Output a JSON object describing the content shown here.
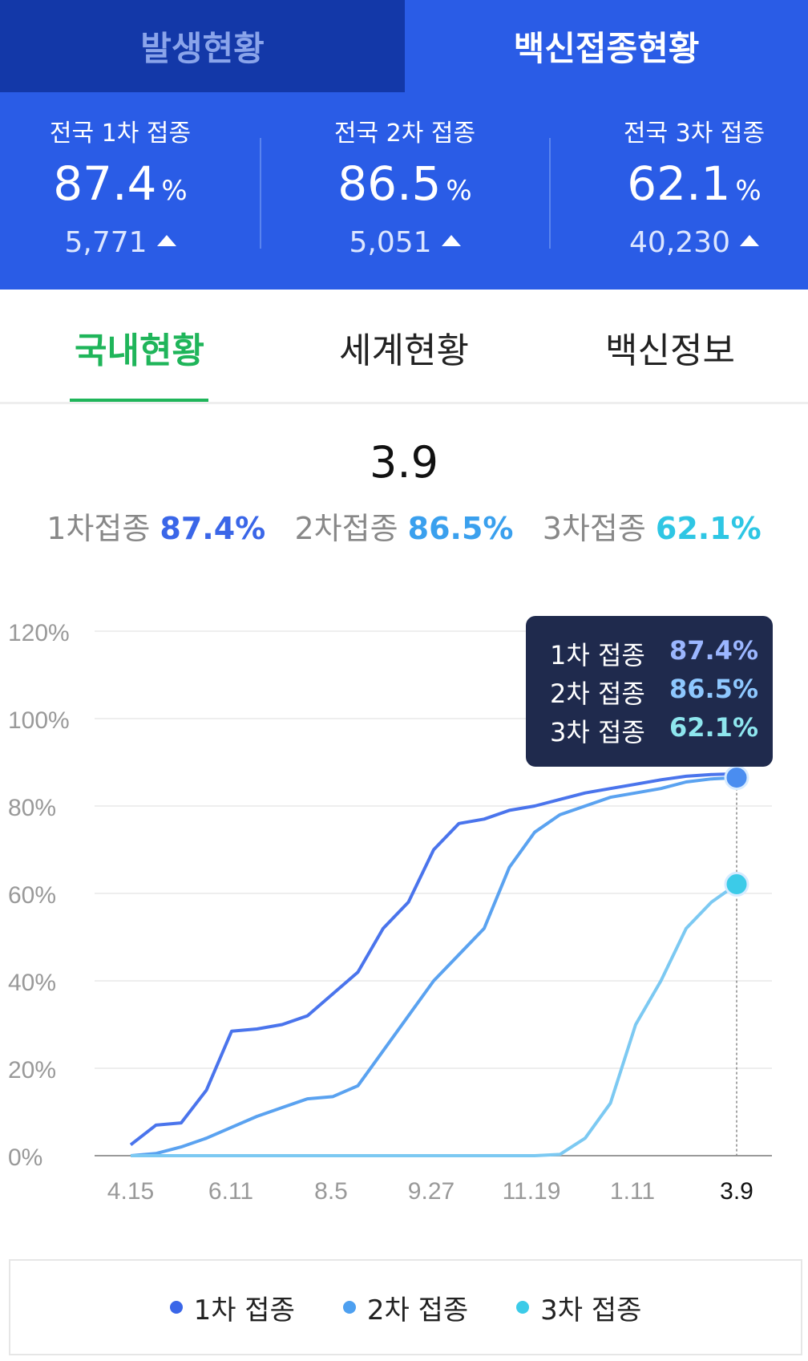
{
  "header": {
    "tabs": [
      {
        "label": "발생현황",
        "active": false
      },
      {
        "label": "백신접종현황",
        "active": true
      }
    ]
  },
  "stats": [
    {
      "label": "전국 1차 접종",
      "value": "87.4",
      "unit": "%",
      "change": "5,771"
    },
    {
      "label": "전국 2차 접종",
      "value": "86.5",
      "unit": "%",
      "change": "5,051"
    },
    {
      "label": "전국 3차 접종",
      "value": "62.1",
      "unit": "%",
      "change": "40,230"
    }
  ],
  "subtabs": [
    {
      "label": "국내현황",
      "active": true
    },
    {
      "label": "세계현황",
      "active": false
    },
    {
      "label": "백신정보",
      "active": false
    }
  ],
  "summary": {
    "date": "3.9",
    "items": [
      {
        "label": "1차접종",
        "value": "87.4%"
      },
      {
        "label": "2차접종",
        "value": "86.5%"
      },
      {
        "label": "3차접종",
        "value": "62.1%"
      }
    ]
  },
  "tooltip": {
    "rows": [
      {
        "label": "1차 접종",
        "value": "87.4%"
      },
      {
        "label": "2차 접종",
        "value": "86.5%"
      },
      {
        "label": "3차 접종",
        "value": "62.1%"
      }
    ]
  },
  "colors": {
    "brand": "#2a5ce6",
    "brand_dark": "#1338a8",
    "active_tab": "#1fb55a",
    "series1": "#4a74ec",
    "series2": "#5aa2f0",
    "series3": "#7cc9f2",
    "tooltip_bg": "#1f2a4d",
    "tooltip_v1": "#9bb6ff",
    "tooltip_v2": "#8ec8ff",
    "tooltip_v3": "#8ee6ee"
  },
  "chart_data": {
    "type": "line",
    "yticks": [
      "0%",
      "20%",
      "40%",
      "60%",
      "80%",
      "100%",
      "120%"
    ],
    "ylim": [
      0,
      120
    ],
    "grid": true,
    "xticks": [
      "4.15",
      "6.11",
      "8.5",
      "9.27",
      "11.19",
      "1.11",
      "3.9"
    ],
    "x": [
      "4.15",
      "5.1",
      "5.15",
      "6.1",
      "6.11",
      "6.20",
      "7.1",
      "7.15",
      "7.25",
      "8.5",
      "8.15",
      "8.25",
      "9.1",
      "9.15",
      "9.27",
      "10.15",
      "11.1",
      "11.19",
      "12.1",
      "12.15",
      "1.1",
      "1.11",
      "2.1",
      "2.20",
      "3.9"
    ],
    "series": [
      {
        "name": "1차 접종",
        "color": "#4a74ec",
        "values": [
          2.5,
          7,
          7.5,
          15,
          28.5,
          29,
          30,
          32,
          37,
          42,
          52,
          58,
          70,
          76,
          77,
          79,
          80,
          81.5,
          83,
          84,
          85,
          86,
          86.8,
          87.2,
          87.4
        ]
      },
      {
        "name": "2차 접종",
        "color": "#5aa2f0",
        "values": [
          0,
          0.5,
          2,
          4,
          6.5,
          9,
          11,
          13,
          13.5,
          16,
          24,
          32,
          40,
          46,
          52,
          66,
          74,
          78,
          80,
          82,
          83,
          84,
          85.5,
          86.2,
          86.5
        ]
      },
      {
        "name": "3차 접종",
        "color": "#7cc9f2",
        "values": [
          0,
          0,
          0,
          0,
          0,
          0,
          0,
          0,
          0,
          0,
          0,
          0,
          0,
          0,
          0,
          0,
          0,
          0.3,
          4,
          12,
          30,
          40,
          52,
          58,
          62.1
        ]
      }
    ],
    "legend": {
      "position": "bottom",
      "items": [
        "1차 접종",
        "2차 접종",
        "3차 접종"
      ]
    }
  }
}
